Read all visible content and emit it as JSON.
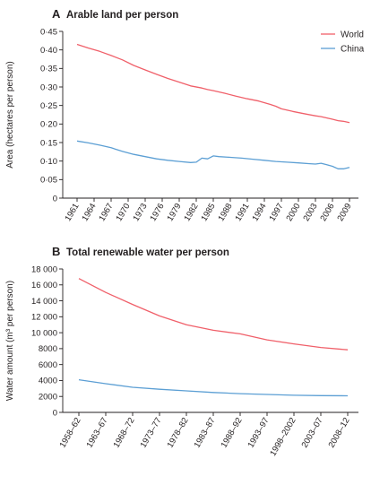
{
  "colors": {
    "world": "#f0606a",
    "china": "#5c9fd4",
    "axis": "#231f20"
  },
  "chart_data": [
    {
      "type": "line",
      "panel_letter": "A",
      "title": "Arable land per person",
      "ylabel": "Area (hectares per person)",
      "xlabel": "",
      "ylim": [
        0,
        0.45
      ],
      "xlim": [
        1961,
        2009
      ],
      "yticks": [
        0,
        0.05,
        0.1,
        0.15,
        0.2,
        0.25,
        0.3,
        0.35,
        0.4,
        0.45
      ],
      "ytick_labels": [
        "0",
        "0·05",
        "0·10",
        "0·15",
        "0·20",
        "0·25",
        "0·30",
        "0·35",
        "0·40",
        "0·45"
      ],
      "xticks": [
        1961,
        1964,
        1967,
        1970,
        1973,
        1976,
        1979,
        1982,
        1985,
        1988,
        1991,
        1994,
        1997,
        2000,
        2003,
        2006,
        2009
      ],
      "xtick_labels": [
        "1961",
        "1964",
        "1967",
        "1970",
        "1973",
        "1976",
        "1979",
        "1982",
        "1985",
        "1988",
        "1991",
        "1994",
        "1997",
        "2000",
        "2003",
        "2006",
        "2009"
      ],
      "legend_position": "top-right",
      "grid": false,
      "series": [
        {
          "name": "World",
          "color_key": "world",
          "x": [
            1961,
            1963,
            1965,
            1967,
            1969,
            1971,
            1973,
            1975,
            1977,
            1979,
            1981,
            1983,
            1984,
            1985,
            1987,
            1989,
            1991,
            1993,
            1995,
            1996,
            1997,
            1999,
            2001,
            2003,
            2004,
            2006,
            2007,
            2008,
            2009
          ],
          "y": [
            0.415,
            0.405,
            0.396,
            0.385,
            0.373,
            0.358,
            0.346,
            0.334,
            0.323,
            0.313,
            0.303,
            0.297,
            0.293,
            0.29,
            0.283,
            0.275,
            0.268,
            0.262,
            0.253,
            0.248,
            0.241,
            0.234,
            0.228,
            0.222,
            0.22,
            0.213,
            0.209,
            0.207,
            0.204
          ]
        },
        {
          "name": "China",
          "color_key": "china",
          "x": [
            1961,
            1963,
            1965,
            1967,
            1969,
            1971,
            1973,
            1975,
            1977,
            1979,
            1981,
            1982,
            1983,
            1984,
            1985,
            1986,
            1988,
            1990,
            1992,
            1994,
            1996,
            1998,
            2000,
            2002,
            2003,
            2004,
            2005,
            2006,
            2007,
            2008,
            2009
          ],
          "y": [
            0.154,
            0.149,
            0.143,
            0.136,
            0.126,
            0.118,
            0.112,
            0.106,
            0.102,
            0.099,
            0.096,
            0.097,
            0.108,
            0.106,
            0.114,
            0.112,
            0.11,
            0.108,
            0.105,
            0.102,
            0.099,
            0.097,
            0.095,
            0.093,
            0.092,
            0.094,
            0.09,
            0.086,
            0.079,
            0.079,
            0.083
          ]
        }
      ]
    },
    {
      "type": "line",
      "panel_letter": "B",
      "title": "Total renewable water per person",
      "ylabel": "Water amount (m³ per person)",
      "xlabel": "",
      "ylim": [
        0,
        18000
      ],
      "yticks": [
        0,
        2000,
        4000,
        6000,
        8000,
        10000,
        12000,
        14000,
        16000,
        18000
      ],
      "ytick_labels": [
        "0",
        "2000",
        "4000",
        "6000",
        "8000",
        "10 000",
        "12 000",
        "14 000",
        "16 000",
        "18 000"
      ],
      "categories": [
        "1958–62",
        "1963–67",
        "1968–72",
        "1973–77",
        "1978–82",
        "1983–87",
        "1988–92",
        "1993–97",
        "1998–2002",
        "2003–07",
        "2008–12"
      ],
      "grid": false,
      "series": [
        {
          "name": "World",
          "color_key": "world",
          "values": [
            16800,
            15050,
            13550,
            12100,
            11000,
            10300,
            9850,
            9100,
            8600,
            8150,
            7850
          ]
        },
        {
          "name": "China",
          "color_key": "china",
          "values": [
            4100,
            3600,
            3150,
            2900,
            2700,
            2500,
            2350,
            2250,
            2150,
            2100,
            2080
          ]
        }
      ]
    }
  ]
}
